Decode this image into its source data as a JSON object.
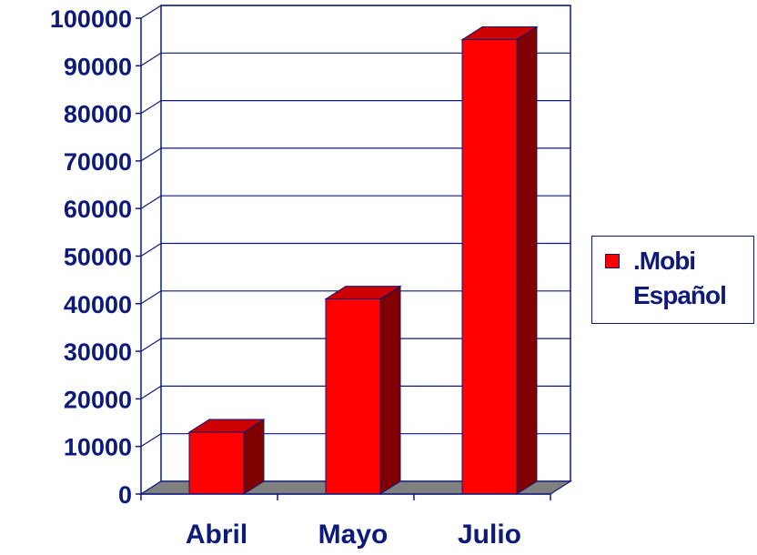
{
  "chart_data": {
    "type": "bar",
    "categories": [
      "Abril",
      "Mayo",
      "Julio"
    ],
    "series": [
      {
        "name": ".Mobi Español",
        "values": [
          13000,
          41000,
          95500
        ]
      }
    ],
    "ylim": [
      0,
      100000
    ],
    "yticks": [
      0,
      10000,
      20000,
      30000,
      40000,
      50000,
      60000,
      70000,
      80000,
      90000,
      100000
    ],
    "grid": true,
    "legend_position": "right",
    "style": "3d-column",
    "colors": {
      "bar_front": "#ff0000",
      "bar_top": "#cc0000",
      "bar_side": "#800000",
      "bar_outline": "#0d1a7a",
      "floor": "#808080",
      "axis": "#0d1a7a",
      "text": "#0d1a7a"
    }
  }
}
